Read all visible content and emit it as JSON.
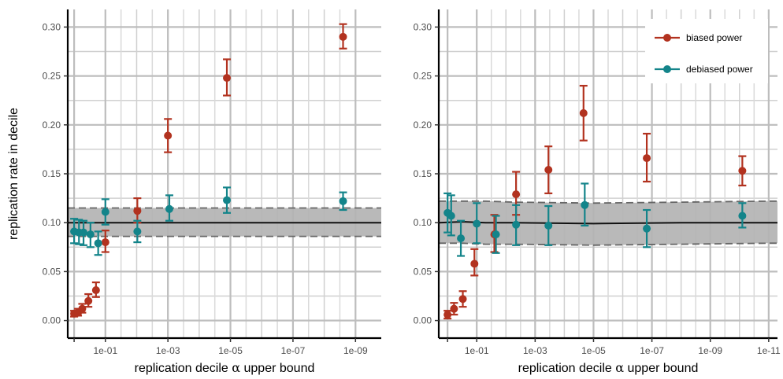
{
  "chart_data": [
    {
      "type": "scatter",
      "panel": "left",
      "xlabel_prefix": "replication decile ",
      "xlabel_symbol": "α",
      "xlabel_suffix": " upper bound",
      "ylabel": "replication rate in decile",
      "x_scale": "log10 (reversed)",
      "xlim": [
        1.6,
        1.5e-10
      ],
      "ylim": [
        -0.018,
        0.318
      ],
      "x_ticks": [
        {
          "value": 0.1,
          "label": "1e-01"
        },
        {
          "value": 0.001,
          "label": "1e-03"
        },
        {
          "value": 1e-05,
          "label": "1e-05"
        },
        {
          "value": 1e-07,
          "label": "1e-07"
        },
        {
          "value": 1e-09,
          "label": "1e-09"
        }
      ],
      "y_ticks": [
        {
          "value": 0.0,
          "label": "0.00"
        },
        {
          "value": 0.05,
          "label": "0.05"
        },
        {
          "value": 0.1,
          "label": "0.10"
        },
        {
          "value": 0.15,
          "label": "0.15"
        },
        {
          "value": 0.2,
          "label": "0.20"
        },
        {
          "value": 0.25,
          "label": "0.25"
        },
        {
          "value": 0.3,
          "label": "0.30"
        }
      ],
      "grid": true,
      "legend": null,
      "band": {
        "x": [
          1.6,
          1e-09,
          1.5e-10
        ],
        "center": [
          0.1,
          0.1,
          0.1
        ],
        "lower": [
          0.086,
          0.086,
          0.086
        ],
        "upper": [
          0.115,
          0.115,
          0.115
        ],
        "color": "#b3b3b3"
      },
      "series": [
        {
          "name": "biased power",
          "color": "#b2321f",
          "points": [
            {
              "x": 1.0,
              "y": 0.007,
              "lo": 0.004,
              "hi": 0.01
            },
            {
              "x": 0.75,
              "y": 0.008,
              "lo": 0.005,
              "hi": 0.012
            },
            {
              "x": 0.55,
              "y": 0.012,
              "lo": 0.008,
              "hi": 0.017
            },
            {
              "x": 0.35,
              "y": 0.02,
              "lo": 0.014,
              "hi": 0.027
            },
            {
              "x": 0.2,
              "y": 0.031,
              "lo": 0.024,
              "hi": 0.039
            },
            {
              "x": 0.1,
              "y": 0.08,
              "lo": 0.07,
              "hi": 0.092
            },
            {
              "x": 0.0095,
              "y": 0.112,
              "lo": 0.1,
              "hi": 0.125
            },
            {
              "x": 0.001,
              "y": 0.189,
              "lo": 0.172,
              "hi": 0.206
            },
            {
              "x": 1.3e-05,
              "y": 0.248,
              "lo": 0.23,
              "hi": 0.267
            },
            {
              "x": 2.5e-09,
              "y": 0.29,
              "lo": 0.278,
              "hi": 0.303
            }
          ]
        },
        {
          "name": "debiased power",
          "color": "#13848a",
          "points": [
            {
              "x": 1.0,
              "y": 0.091,
              "lo": 0.079,
              "hi": 0.104
            },
            {
              "x": 0.7,
              "y": 0.09,
              "lo": 0.078,
              "hi": 0.103
            },
            {
              "x": 0.5,
              "y": 0.09,
              "lo": 0.077,
              "hi": 0.102
            },
            {
              "x": 0.3,
              "y": 0.088,
              "lo": 0.075,
              "hi": 0.1
            },
            {
              "x": 0.17,
              "y": 0.079,
              "lo": 0.067,
              "hi": 0.091
            },
            {
              "x": 0.1,
              "y": 0.111,
              "lo": 0.098,
              "hi": 0.124
            },
            {
              "x": 0.0095,
              "y": 0.091,
              "lo": 0.08,
              "hi": 0.102
            },
            {
              "x": 0.0009,
              "y": 0.114,
              "lo": 0.102,
              "hi": 0.128
            },
            {
              "x": 1.3e-05,
              "y": 0.123,
              "lo": 0.11,
              "hi": 0.136
            },
            {
              "x": 2.5e-09,
              "y": 0.122,
              "lo": 0.113,
              "hi": 0.131
            }
          ]
        }
      ]
    },
    {
      "type": "scatter",
      "panel": "right",
      "xlabel_prefix": "replication decile ",
      "xlabel_symbol": "α",
      "xlabel_suffix": " upper bound",
      "ylabel": "",
      "x_scale": "log10 (reversed)",
      "xlim": [
        2.0,
        5e-12
      ],
      "ylim": [
        -0.018,
        0.318
      ],
      "x_ticks": [
        {
          "value": 0.1,
          "label": "1e-01"
        },
        {
          "value": 0.001,
          "label": "1e-03"
        },
        {
          "value": 1e-05,
          "label": "1e-05"
        },
        {
          "value": 1e-07,
          "label": "1e-07"
        },
        {
          "value": 1e-09,
          "label": "1e-09"
        },
        {
          "value": 1e-11,
          "label": "1e-11"
        }
      ],
      "y_ticks": [
        {
          "value": 0.0,
          "label": "0.00"
        },
        {
          "value": 0.05,
          "label": "0.05"
        },
        {
          "value": 0.1,
          "label": "0.10"
        },
        {
          "value": 0.15,
          "label": "0.15"
        },
        {
          "value": 0.2,
          "label": "0.20"
        },
        {
          "value": 0.25,
          "label": "0.25"
        },
        {
          "value": 0.3,
          "label": "0.30"
        }
      ],
      "grid": true,
      "legend": "top-right",
      "band": {
        "x": [
          2.0,
          0.3,
          0.05,
          0.005,
          1e-05,
          1e-08,
          1e-11,
          5e-12
        ],
        "center": [
          0.1,
          0.101,
          0.1,
          0.1,
          0.099,
          0.1,
          0.1,
          0.1
        ],
        "lower": [
          0.079,
          0.079,
          0.078,
          0.078,
          0.077,
          0.078,
          0.079,
          0.079
        ],
        "upper": [
          0.122,
          0.122,
          0.122,
          0.121,
          0.12,
          0.121,
          0.122,
          0.122
        ],
        "color": "#b3b3b3"
      },
      "series": [
        {
          "name": "biased power",
          "color": "#b2321f",
          "points": [
            {
              "x": 1.0,
              "y": 0.006,
              "lo": 0.002,
              "hi": 0.01
            },
            {
              "x": 0.6,
              "y": 0.012,
              "lo": 0.006,
              "hi": 0.018
            },
            {
              "x": 0.3,
              "y": 0.022,
              "lo": 0.014,
              "hi": 0.03
            },
            {
              "x": 0.12,
              "y": 0.058,
              "lo": 0.046,
              "hi": 0.073
            },
            {
              "x": 0.025,
              "y": 0.088,
              "lo": 0.07,
              "hi": 0.108
            },
            {
              "x": 0.0045,
              "y": 0.129,
              "lo": 0.108,
              "hi": 0.152
            },
            {
              "x": 0.00035,
              "y": 0.154,
              "lo": 0.13,
              "hi": 0.178
            },
            {
              "x": 2.2e-05,
              "y": 0.212,
              "lo": 0.184,
              "hi": 0.24
            },
            {
              "x": 1.5e-07,
              "y": 0.166,
              "lo": 0.142,
              "hi": 0.191
            },
            {
              "x": 8e-11,
              "y": 0.153,
              "lo": 0.138,
              "hi": 0.168
            }
          ]
        },
        {
          "name": "debiased power",
          "color": "#13848a",
          "points": [
            {
              "x": 1.0,
              "y": 0.11,
              "lo": 0.09,
              "hi": 0.13
            },
            {
              "x": 0.75,
              "y": 0.107,
              "lo": 0.087,
              "hi": 0.128
            },
            {
              "x": 0.35,
              "y": 0.084,
              "lo": 0.066,
              "hi": 0.102
            },
            {
              "x": 0.1,
              "y": 0.099,
              "lo": 0.079,
              "hi": 0.12
            },
            {
              "x": 0.022,
              "y": 0.088,
              "lo": 0.069,
              "hi": 0.107
            },
            {
              "x": 0.0045,
              "y": 0.098,
              "lo": 0.077,
              "hi": 0.118
            },
            {
              "x": 0.00035,
              "y": 0.097,
              "lo": 0.077,
              "hi": 0.117
            },
            {
              "x": 2e-05,
              "y": 0.118,
              "lo": 0.097,
              "hi": 0.14
            },
            {
              "x": 1.5e-07,
              "y": 0.094,
              "lo": 0.075,
              "hi": 0.113
            },
            {
              "x": 8e-11,
              "y": 0.107,
              "lo": 0.095,
              "hi": 0.12
            }
          ]
        }
      ]
    }
  ]
}
